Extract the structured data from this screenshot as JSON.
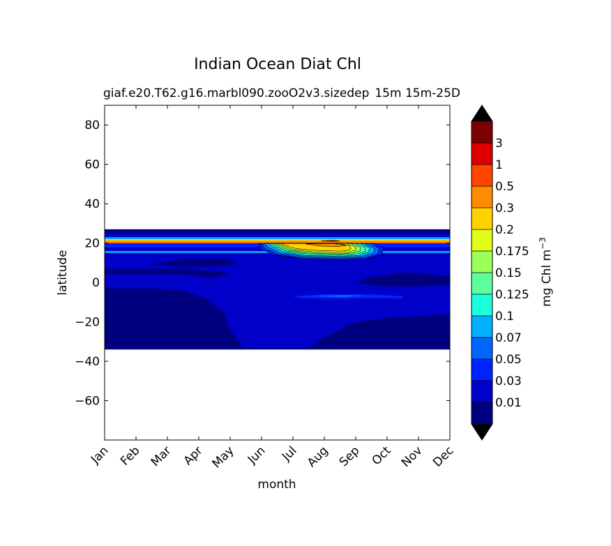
{
  "chart_data": {
    "type": "heatmap",
    "title": "Indian Ocean Diat Chl",
    "subtitle_left": "giaf.e20.T62.g16.marbl090.zooO2v3.sizedep",
    "subtitle_right": "15m 15m-25D",
    "xlabel": "month",
    "ylabel": "latitude",
    "x_categories": [
      "Jan",
      "Feb",
      "Mar",
      "Apr",
      "May",
      "Jun",
      "Jul",
      "Aug",
      "Sep",
      "Oct",
      "Nov",
      "Dec"
    ],
    "y_ticks": [
      80,
      60,
      40,
      20,
      0,
      -20,
      -40,
      -60
    ],
    "ylim": [
      -80,
      90
    ],
    "xlim": [
      0,
      11
    ],
    "data_lat_range": [
      -34,
      27
    ],
    "colorbar": {
      "label": "mg Chl m",
      "label_exponent": "−3",
      "tick_labels": [
        "0.01",
        "0.03",
        "0.05",
        "0.07",
        "0.1",
        "0.125",
        "0.15",
        "0.175",
        "0.2",
        "0.3",
        "0.5",
        "1",
        "3"
      ],
      "colors": [
        "#00007f",
        "#0000c9",
        "#0022ff",
        "#0066ff",
        "#00b0ff",
        "#19ffdd",
        "#5aff9c",
        "#9cff5a",
        "#ddff19",
        "#ffd200",
        "#ff8c00",
        "#ff4500",
        "#de0000",
        "#7f0000"
      ],
      "extend": "both",
      "under_color": "#000000",
      "over_color": "#000000"
    }
  }
}
